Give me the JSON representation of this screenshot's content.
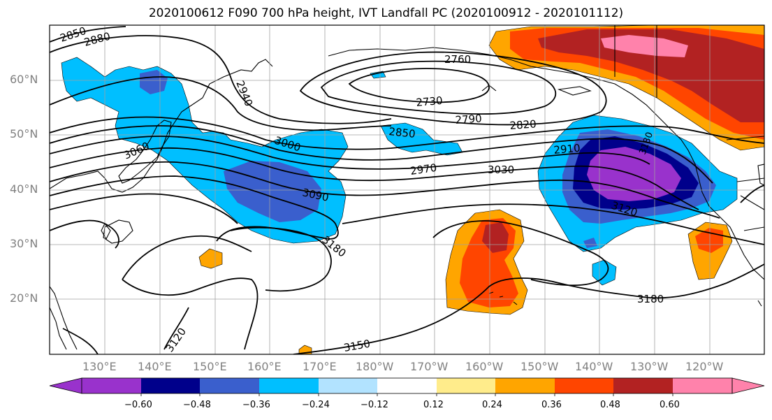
{
  "title": "2020100612 F090 700 hPa height, IVT Landfall PC (2020100912 - 2020101112)",
  "lat_labels": [
    "60°N",
    "50°N",
    "40°N",
    "30°N",
    "20°N"
  ],
  "lon_labels": [
    "130°E",
    "140°E",
    "150°E",
    "160°E",
    "170°E",
    "180°W",
    "170°W",
    "160°W",
    "150°W",
    "140°W",
    "130°W",
    "120°W"
  ],
  "contour_labels": [
    "2850",
    "2880",
    "2940",
    "2760",
    "2730",
    "2790",
    "2820",
    "2850",
    "2910",
    "2970",
    "3030",
    "3000",
    "3060",
    "3090",
    "3120",
    "3180",
    "3180",
    "3150",
    "3120",
    "3180"
  ],
  "colorbar": {
    "ticks": [
      "−0.60",
      "−0.48",
      "−0.36",
      "−0.24",
      "−0.12",
      "0.12",
      "0.24",
      "0.36",
      "0.48",
      "0.60"
    ],
    "colors": [
      "#9932cc",
      "#00008b",
      "#3a5fcd",
      "#00bfff",
      "#b2e3ff",
      "#ffffff",
      "#ffec8b",
      "#ffa500",
      "#ff4500",
      "#b22222",
      "#ff82ab"
    ]
  }
}
